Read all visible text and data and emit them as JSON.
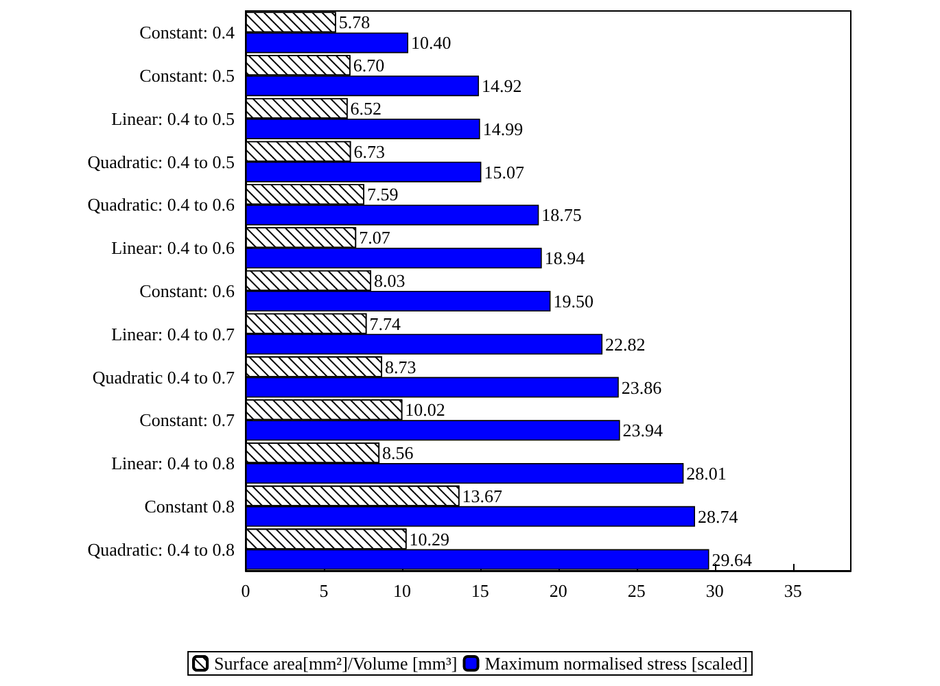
{
  "chart_data": {
    "type": "bar",
    "orientation": "horizontal",
    "categories": [
      "Constant: 0.4",
      "Constant: 0.5",
      "Linear: 0.4 to 0.5",
      "Quadratic: 0.4 to 0.5",
      "Quadratic: 0.4 to 0.6",
      "Linear: 0.4 to 0.6",
      "Constant: 0.6",
      "Linear: 0.4 to 0.7",
      "Quadratic 0.4 to 0.7",
      "Constant: 0.7",
      "Linear: 0.4 to 0.8",
      "Constant 0.8",
      "Quadratic: 0.4 to 0.8"
    ],
    "series": [
      {
        "name": "Surface area[mm²]/Volume [mm³]",
        "color": "#ffffff",
        "values": [
          5.78,
          6.7,
          6.52,
          6.73,
          7.59,
          7.07,
          8.03,
          7.74,
          8.73,
          10.02,
          8.56,
          13.67,
          10.29
        ],
        "value_labels": [
          "5.78",
          "6.70",
          "6.52",
          "6.73",
          "7.59",
          "7.07",
          "8.03",
          "7.74",
          "8.73",
          "10.02",
          "8.56",
          "13.67",
          "10.29"
        ]
      },
      {
        "name": "Maximum normalised stress [scaled]",
        "color": "#0000ff",
        "values": [
          10.4,
          14.92,
          14.99,
          15.07,
          18.75,
          18.94,
          19.5,
          22.82,
          23.86,
          23.94,
          28.01,
          28.74,
          29.64
        ],
        "value_labels": [
          "10.40",
          "14.92",
          "14.99",
          "15.07",
          "18.75",
          "18.94",
          "19.50",
          "22.82",
          "23.86",
          "23.94",
          "28.01",
          "28.74",
          "29.64"
        ]
      }
    ],
    "xlim": [
      0,
      38.7
    ],
    "xticks": [
      0,
      5,
      10,
      15,
      20,
      25,
      30,
      35
    ],
    "grid": false,
    "legend": "bottom"
  }
}
